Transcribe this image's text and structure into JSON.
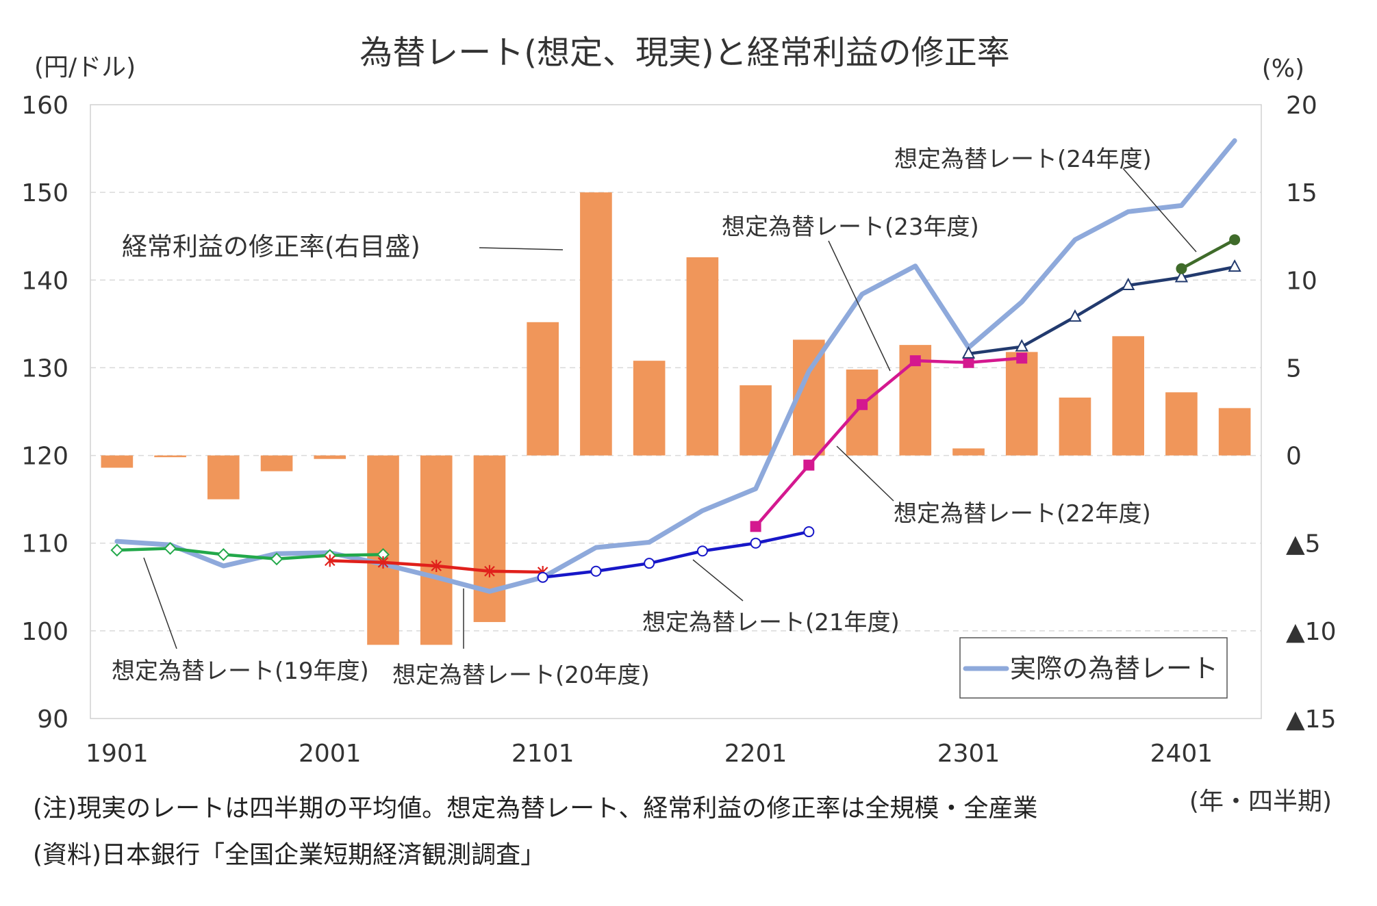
{
  "chart_data": {
    "type": "bar+line",
    "title": "為替レート(想定、現実)と経常利益の修正率",
    "left_axis_label": "(円/ドル)",
    "right_axis_label": "(%)",
    "x_axis_label": "(年・四半期)",
    "left_ylim": [
      90,
      160
    ],
    "left_ticks": [
      90,
      100,
      110,
      120,
      130,
      140,
      150,
      160
    ],
    "left_tick_labels": [
      "90",
      "100",
      "110",
      "120",
      "130",
      "140",
      "150",
      "160"
    ],
    "right_ylim": [
      -15,
      20
    ],
    "right_ticks": [
      -15,
      -10,
      -5,
      0,
      5,
      10,
      15,
      20
    ],
    "right_tick_labels": [
      "▲15",
      "▲10",
      "▲5",
      "0",
      "5",
      "10",
      "15",
      "20"
    ],
    "categories": [
      "1901",
      "1902",
      "1903",
      "1904",
      "2001",
      "2002",
      "2003",
      "2004",
      "2101",
      "2102",
      "2103",
      "2104",
      "2201",
      "2202",
      "2203",
      "2204",
      "2301",
      "2302",
      "2303",
      "2304",
      "2401",
      "2402"
    ],
    "x_tick_labels": [
      {
        "index": 0,
        "label": "1901"
      },
      {
        "index": 4,
        "label": "2001"
      },
      {
        "index": 8,
        "label": "2101"
      },
      {
        "index": 12,
        "label": "2201"
      },
      {
        "index": 16,
        "label": "2301"
      },
      {
        "index": 20,
        "label": "2401"
      }
    ],
    "bars": {
      "name": "経常利益の修正率(右目盛)",
      "axis": "right",
      "color": "#f0965a",
      "values": [
        -0.7,
        -0.1,
        -2.5,
        -0.9,
        -0.2,
        -10.8,
        -10.8,
        -9.5,
        7.6,
        15.0,
        5.4,
        11.3,
        4.0,
        6.6,
        4.9,
        6.3,
        0.4,
        5.9,
        3.3,
        6.8,
        3.6,
        2.7
      ]
    },
    "actual_rate": {
      "name": "実際の為替レート",
      "color": "#8ea9db",
      "values": [
        110.2,
        109.8,
        107.4,
        108.8,
        108.9,
        107.6,
        106.1,
        104.5,
        106.1,
        109.5,
        110.1,
        113.7,
        116.2,
        129.6,
        138.4,
        141.6,
        132.3,
        137.5,
        144.6,
        147.8,
        148.5,
        155.9
      ]
    },
    "assumed_series": [
      {
        "name": "想定為替レート(19年度)",
        "color": "#22a84a",
        "marker": "diamond",
        "start_index": 0,
        "values": [
          109.2,
          109.4,
          108.7,
          108.2,
          108.6,
          108.7
        ]
      },
      {
        "name": "想定為替レート(20年度)",
        "color": "#e0201b",
        "marker": "asterisk",
        "start_index": 4,
        "values": [
          108.0,
          107.8,
          107.4,
          106.8,
          106.7
        ]
      },
      {
        "name": "想定為替レート(21年度)",
        "color": "#1717c8",
        "marker": "circle",
        "start_index": 8,
        "values": [
          106.1,
          106.8,
          107.7,
          109.1,
          110.0,
          111.3
        ]
      },
      {
        "name": "想定為替レート(22年度)",
        "color": "#d4188f",
        "marker": "square",
        "start_index": 12,
        "values": [
          111.9,
          118.9,
          125.8,
          130.8,
          130.6,
          131.1
        ]
      },
      {
        "name": "想定為替レート(23年度)",
        "color": "#223a6e",
        "marker": "triangle",
        "start_index": 16,
        "values": [
          131.6,
          132.4,
          135.8,
          139.4,
          140.3,
          141.5
        ]
      },
      {
        "name": "想定為替レート(24年度)",
        "color": "#3f6b2a",
        "marker": "dot",
        "start_index": 20,
        "values": [
          141.3,
          144.6
        ]
      }
    ],
    "legend": {
      "label": "実際の為替レート",
      "placement": "bottom-right"
    },
    "annotations": {
      "bars_label": "経常利益の修正率(右目盛)",
      "fy19": "想定為替レート(19年度)",
      "fy20": "想定為替レート(20年度)",
      "fy21": "想定為替レート(21年度)",
      "fy22": "想定為替レート(22年度)",
      "fy23": "想定為替レート(23年度)",
      "fy24": "想定為替レート(24年度)"
    }
  },
  "notes": {
    "note1": "(注)現実のレートは四半期の平均値。想定為替レート、経常利益の修正率は全規模・全産業",
    "source": "(資料)日本銀行「全国企業短期経済観測調査」"
  }
}
